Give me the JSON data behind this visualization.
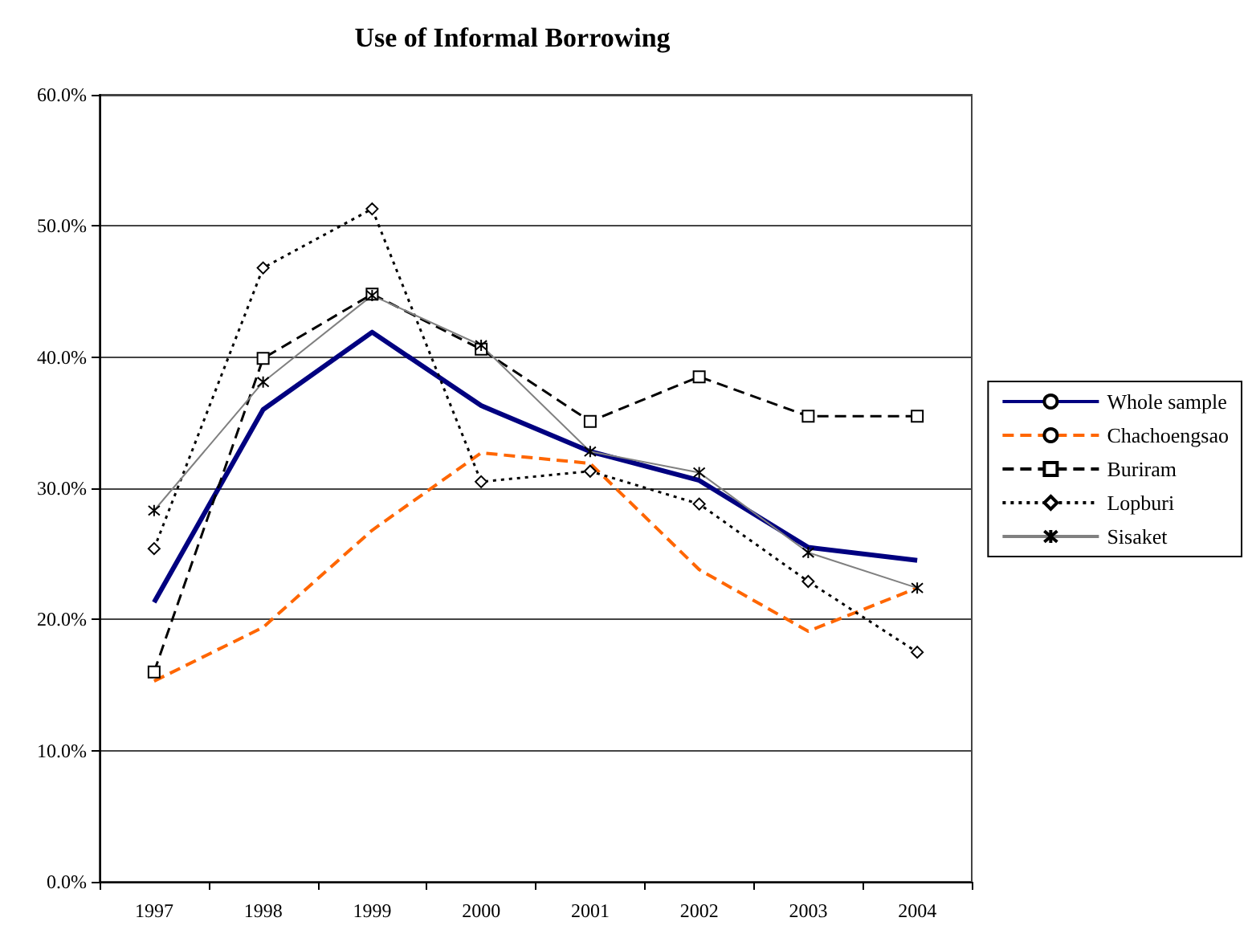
{
  "chart_data": {
    "type": "line",
    "title": "Use of Informal Borrowing",
    "categories": [
      "1997",
      "1998",
      "1999",
      "2000",
      "2001",
      "2002",
      "2003",
      "2004"
    ],
    "series": [
      {
        "name": "Whole sample",
        "color": "#000080",
        "marker": "none",
        "line_style": "solid",
        "values": [
          21.3,
          36.0,
          41.9,
          36.3,
          32.8,
          30.6,
          25.5,
          24.5
        ]
      },
      {
        "name": "Chachoengsao",
        "color": "#ff6600",
        "marker": "none",
        "line_style": "dashed",
        "values": [
          15.3,
          19.4,
          26.8,
          32.7,
          31.9,
          23.8,
          19.1,
          22.4
        ]
      },
      {
        "name": "Buriram",
        "color": "#000000",
        "marker": "square",
        "line_style": "dashed",
        "values": [
          16.0,
          39.9,
          44.8,
          40.6,
          35.1,
          38.5,
          35.5,
          35.5
        ]
      },
      {
        "name": "Lopburi",
        "color": "#000000",
        "marker": "diamond",
        "line_style": "dotted",
        "values": [
          25.4,
          46.8,
          51.3,
          30.5,
          31.3,
          28.8,
          22.9,
          17.5
        ]
      },
      {
        "name": "Sisaket",
        "color": "#808080",
        "marker": "cross",
        "line_style": "solid",
        "values": [
          28.3,
          38.1,
          44.7,
          40.9,
          32.8,
          31.2,
          25.1,
          22.4
        ]
      }
    ],
    "ylim": [
      0,
      60
    ],
    "yticks": [
      {
        "value": 0,
        "label": "0.0%"
      },
      {
        "value": 10,
        "label": "10.0%"
      },
      {
        "value": 20,
        "label": "20.0%"
      },
      {
        "value": 30,
        "label": "30.0%"
      },
      {
        "value": 40,
        "label": "40.0%"
      },
      {
        "value": 50,
        "label": "50.0%"
      },
      {
        "value": 60,
        "label": "60.0%"
      }
    ],
    "grid": "y",
    "legend": "right"
  }
}
